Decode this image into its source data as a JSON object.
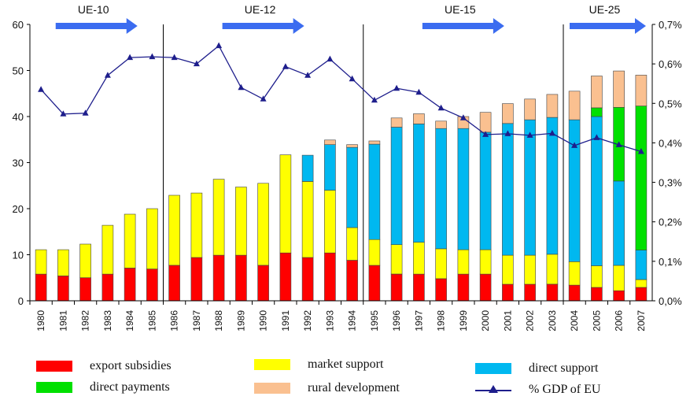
{
  "chart_data": {
    "type": "bar",
    "stacked": true,
    "categories": [
      "1980",
      "1981",
      "1982",
      "1983",
      "1984",
      "1985",
      "1986",
      "1987",
      "1988",
      "1989",
      "1990",
      "1991",
      "1992",
      "1993",
      "1994",
      "1995",
      "1996",
      "1997",
      "1998",
      "1999",
      "2000",
      "2001",
      "2002",
      "2003",
      "2004",
      "2005",
      "2006",
      "2007"
    ],
    "series": [
      {
        "name": "export subsidies",
        "color": "#ff0000",
        "values": [
          5.8,
          5.4,
          5.0,
          5.8,
          7.1,
          6.9,
          7.7,
          9.4,
          9.9,
          9.9,
          7.7,
          10.4,
          9.4,
          10.4,
          8.8,
          7.7,
          5.8,
          5.8,
          4.8,
          5.8,
          5.8,
          3.6,
          3.6,
          3.6,
          3.4,
          2.9,
          2.2,
          2.9
        ]
      },
      {
        "name": "market support",
        "color": "#ffff00",
        "values": [
          5.3,
          5.7,
          7.3,
          10.6,
          11.7,
          13.1,
          15.2,
          14.0,
          16.5,
          14.8,
          17.8,
          21.3,
          16.5,
          13.6,
          7.1,
          5.6,
          6.4,
          6.9,
          6.5,
          5.3,
          5.3,
          6.3,
          6.3,
          6.5,
          5.1,
          4.7,
          5.5,
          1.7
        ]
      },
      {
        "name": "direct support",
        "color": "#00b8f0",
        "values": [
          0,
          0,
          0,
          0,
          0,
          0,
          0,
          0,
          0,
          0,
          0,
          0,
          5.7,
          9.9,
          17.4,
          20.7,
          25.5,
          25.7,
          26.1,
          26.3,
          25.5,
          28.6,
          29.4,
          29.7,
          30.8,
          32.4,
          18.3,
          6.4
        ]
      },
      {
        "name": "direct payments",
        "color": "#00e000",
        "values": [
          0,
          0,
          0,
          0,
          0,
          0,
          0,
          0,
          0,
          0,
          0,
          0,
          0,
          0,
          0,
          0,
          0,
          0,
          0,
          0,
          0,
          0,
          0,
          0,
          0,
          1.9,
          16.0,
          31.3
        ]
      },
      {
        "name": "rural development",
        "color": "#fac090",
        "values": [
          0,
          0,
          0,
          0,
          0,
          0,
          0,
          0,
          0,
          0,
          0,
          0,
          0,
          1.0,
          0.6,
          0.7,
          2.0,
          2.2,
          1.6,
          2.6,
          4.3,
          4.3,
          4.5,
          5.0,
          6.2,
          6.9,
          7.9,
          6.7
        ]
      }
    ],
    "line_series": {
      "name": "% GDP of EU",
      "color": "#1e1e8c",
      "axis": "right",
      "values": [
        0.535,
        0.473,
        0.475,
        0.571,
        0.616,
        0.618,
        0.616,
        0.6,
        0.646,
        0.54,
        0.511,
        0.593,
        0.571,
        0.612,
        0.562,
        0.508,
        0.538,
        0.528,
        0.488,
        0.463,
        0.421,
        0.423,
        0.419,
        0.424,
        0.393,
        0.413,
        0.395,
        0.378
      ]
    },
    "ylim": [
      0,
      60
    ],
    "yticks": [
      0,
      10,
      20,
      30,
      40,
      50,
      60
    ],
    "y2lim": [
      0,
      0.7
    ],
    "y2ticks": [
      "0,0%",
      "0,1%",
      "0,2%",
      "0,3%",
      "0,4%",
      "0,5%",
      "0,6%",
      "0,7%"
    ],
    "eras": [
      {
        "label": "UE-10",
        "start": "1980"
      },
      {
        "label": "UE-12",
        "start": "1986"
      },
      {
        "label": "UE-15",
        "start": "1995"
      },
      {
        "label": "UE-25",
        "start": "2004"
      }
    ],
    "grid": false,
    "legend_position": "bottom"
  },
  "legend": {
    "export_subsidies": "export subsidies",
    "market_support": "market support",
    "direct_support": "direct support",
    "direct_payments": "direct payments",
    "rural_development": "rural development",
    "gdp": "% GDP of EU"
  },
  "colors": {
    "export": "#ff0000",
    "market": "#ffff00",
    "direct_support": "#00b8f0",
    "direct_payments": "#00e000",
    "rural": "#fac090",
    "line": "#1e1e8c",
    "arrow": "#3b6cf0"
  }
}
